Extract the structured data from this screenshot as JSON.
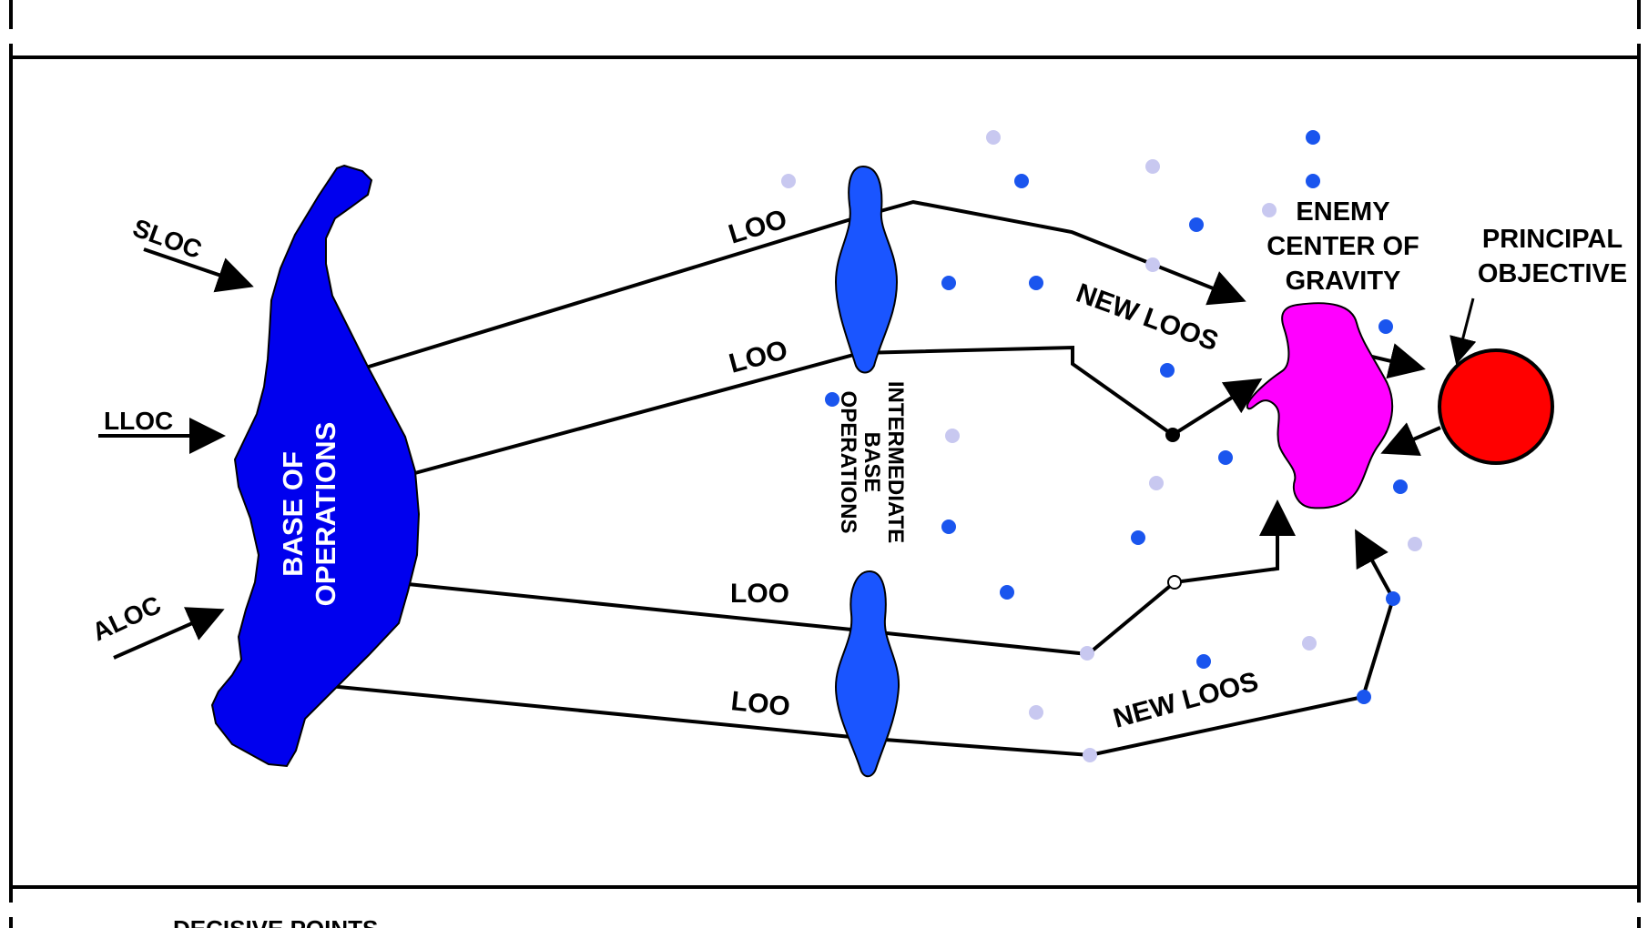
{
  "labels": {
    "sloc": "SLOC",
    "lloc": "LLOC",
    "aloc": "ALOC",
    "base_line1": "BASE OF",
    "base_line2": "OPERATIONS",
    "loo": "LOO",
    "intermediate_line1": "INTERMEDIATE",
    "intermediate_line2": "BASE",
    "intermediate_line3": "OPERATIONS",
    "new_loos": "NEW LOOS",
    "enemy_line1": "ENEMY",
    "enemy_line2": "CENTER OF",
    "enemy_line3": "GRAVITY",
    "principal_line1": "PRINCIPAL",
    "principal_line2": "OBJECTIVE",
    "decisive_points": "DECISIVE POINTS"
  },
  "colors": {
    "base": "#0000ee",
    "intermediate": "#1a55ff",
    "enemy": "#ff00ff",
    "objective": "#ff0000",
    "point_dark": "#1a55ee",
    "point_light": "#c8c8f0"
  }
}
